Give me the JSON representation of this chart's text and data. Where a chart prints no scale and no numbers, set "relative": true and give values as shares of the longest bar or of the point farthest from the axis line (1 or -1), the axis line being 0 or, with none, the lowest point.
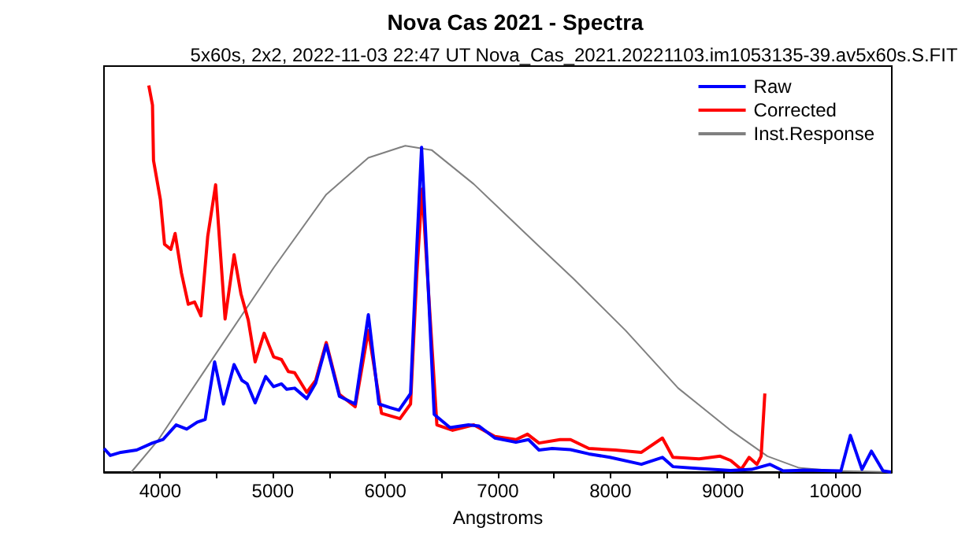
{
  "chart_data": {
    "type": "line",
    "title": "Nova Cas 2021 - Spectra",
    "subtitle": "5x60s, 2x2, 2022-11-03 22:47 UT Nova_Cas_2021.20221103.im1053135-39.av5x60s.S.FIT",
    "xlabel": "Angstroms",
    "relative": true,
    "xlim": [
      3500,
      10500
    ],
    "xticks": [
      4000,
      {
        "value": 4500,
        "label": null
      },
      5000,
      {
        "value": 5500,
        "label": null
      },
      6000,
      {
        "value": 6500,
        "label": null
      },
      7000,
      {
        "value": 7500,
        "label": null
      },
      8000,
      {
        "value": 8500,
        "label": null
      },
      9000,
      {
        "value": 9500,
        "label": null
      },
      10000
    ],
    "grid": false,
    "legend": "top right",
    "marker": "none",
    "line_style": "solid",
    "series": [
      {
        "name": "Raw",
        "color": "#0000ff",
        "x": [
          3500,
          3556,
          3650,
          3790,
          3930,
          4024,
          4141,
          4235,
          4328,
          4399,
          4483,
          4562,
          4656,
          4726,
          4773,
          4843,
          4937,
          5007,
          5077,
          5124,
          5194,
          5302,
          5381,
          5475,
          5592,
          5732,
          5849,
          5943,
          6037,
          6121,
          6224,
          6280,
          6322,
          6364,
          6434,
          6575,
          6739,
          6832,
          6973,
          7160,
          7272,
          7365,
          7482,
          7645,
          7808,
          7995,
          8275,
          8462,
          8555,
          8788,
          9068,
          9255,
          9418,
          9535,
          9722,
          10048,
          10132,
          10235,
          10319,
          10422,
          10492
        ],
        "values": [
          0.061,
          0.043,
          0.051,
          0.057,
          0.075,
          0.084,
          0.122,
          0.111,
          0.129,
          0.136,
          0.285,
          0.176,
          0.278,
          0.237,
          0.228,
          0.179,
          0.247,
          0.221,
          0.228,
          0.214,
          0.217,
          0.19,
          0.23,
          0.329,
          0.196,
          0.176,
          0.407,
          0.176,
          0.167,
          0.16,
          0.203,
          0.583,
          0.84,
          0.583,
          0.149,
          0.115,
          0.122,
          0.119,
          0.088,
          0.077,
          0.084,
          0.057,
          0.061,
          0.058,
          0.047,
          0.038,
          0.02,
          0.038,
          0.014,
          0.009,
          0.004,
          0.007,
          0.02,
          0.003,
          0.005,
          0.003,
          0.095,
          0.007,
          0.054,
          0.003,
          0
        ]
      },
      {
        "name": "Corrected",
        "color": "#ff0000",
        "x": [
          3898,
          3931,
          3940,
          4001,
          4038,
          4094,
          4132,
          4188,
          4249,
          4305,
          4361,
          4422,
          4492,
          4576,
          4656,
          4717,
          4782,
          4843,
          4923,
          5007,
          5077,
          5138,
          5194,
          5302,
          5381,
          5475,
          5592,
          5732,
          5849,
          5966,
          6130,
          6224,
          6280,
          6327,
          6373,
          6458,
          6598,
          6785,
          6973,
          7160,
          7263,
          7365,
          7552,
          7645,
          7808,
          8042,
          8275,
          8462,
          8555,
          8788,
          8975,
          9068,
          9162,
          9232,
          9302,
          9339,
          9372
        ],
        "values": [
          1.0,
          0.949,
          0.806,
          0.705,
          0.589,
          0.576,
          0.617,
          0.515,
          0.434,
          0.44,
          0.404,
          0.61,
          0.743,
          0.396,
          0.562,
          0.461,
          0.393,
          0.285,
          0.359,
          0.298,
          0.291,
          0.26,
          0.257,
          0.206,
          0.237,
          0.335,
          0.201,
          0.169,
          0.366,
          0.152,
          0.138,
          0.176,
          0.515,
          0.732,
          0.515,
          0.122,
          0.108,
          0.122,
          0.092,
          0.084,
          0.098,
          0.075,
          0.084,
          0.084,
          0.061,
          0.057,
          0.051,
          0.088,
          0.038,
          0.034,
          0.041,
          0.03,
          0.007,
          0.038,
          0.02,
          0.041,
          0.203
        ]
      },
      {
        "name": "Inst.Response",
        "color": "#808080",
        "x": [
          3743,
          3977,
          4492,
          5007,
          5475,
          5849,
          6177,
          6411,
          6785,
          7347,
          7668,
          8135,
          8602,
          9068,
          9395,
          9675,
          10002,
          10492
        ],
        "values": [
          0,
          0.081,
          0.305,
          0.528,
          0.718,
          0.813,
          0.844,
          0.833,
          0.745,
          0.589,
          0.501,
          0.366,
          0.217,
          0.108,
          0.041,
          0.011,
          0.003,
          0
        ]
      }
    ]
  }
}
